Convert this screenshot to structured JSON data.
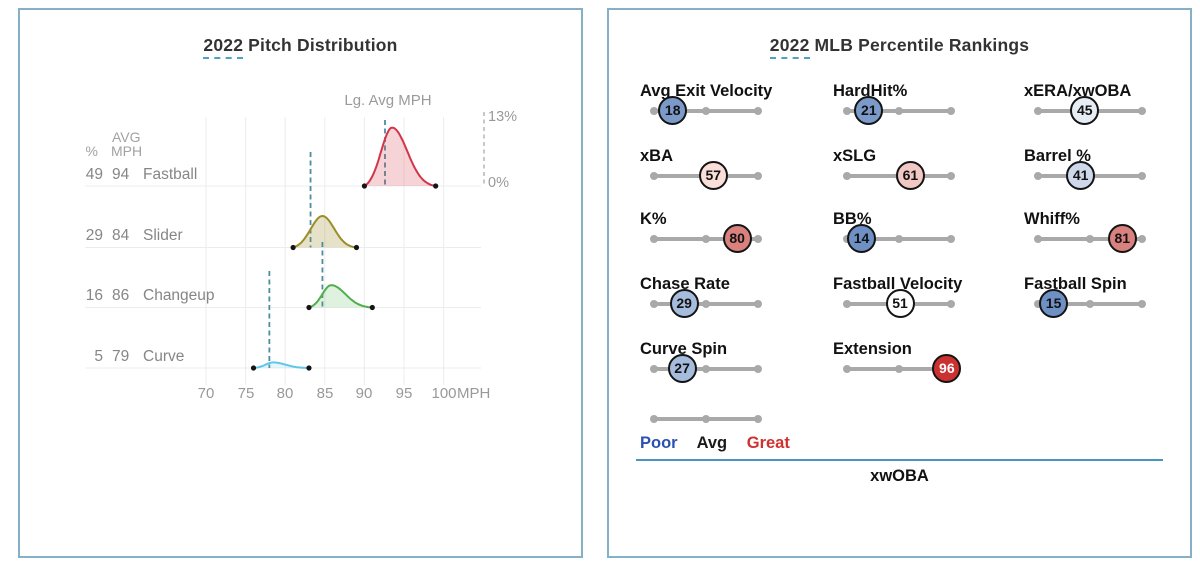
{
  "left_panel": {
    "title_year": "2022",
    "title_rest": "Pitch Distribution",
    "lg_avg_label": "Lg. Avg MPH",
    "y_axis": {
      "top": "13%",
      "bottom": "0%"
    },
    "headers": {
      "pct": "%",
      "avg_line1": "AVG",
      "avg_line2": "MPH"
    },
    "x_unit": "MPH"
  },
  "right_panel": {
    "title_year": "2022",
    "title_rest": "MLB Percentile Rankings"
  },
  "chart_data": [
    {
      "type": "area",
      "title": "2022 Pitch Distribution",
      "xlabel": "MPH",
      "ylabel": "%",
      "xlim": [
        68,
        102
      ],
      "x_ticks": [
        70,
        75,
        80,
        85,
        90,
        95,
        100
      ],
      "ylim_pct": [
        0,
        13
      ],
      "grid": true,
      "series": [
        {
          "name": "Fastball",
          "usage_pct": 49,
          "avg_mph": 94,
          "league_avg_mph": 92.6,
          "range_mph": [
            90,
            99
          ],
          "peak_mph": 93.5,
          "peak_density_pct": 11.5,
          "color": "#d2354a",
          "fill": "rgba(210,53,74,0.22)"
        },
        {
          "name": "Slider",
          "usage_pct": 29,
          "avg_mph": 84,
          "league_avg_mph": 83.2,
          "range_mph": [
            81,
            89
          ],
          "peak_mph": 84.7,
          "peak_density_pct": 6.2,
          "color": "#9d8d26",
          "fill": "rgba(157,141,38,0.25)"
        },
        {
          "name": "Changeup",
          "usage_pct": 16,
          "avg_mph": 86,
          "league_avg_mph": 84.7,
          "range_mph": [
            83,
            91
          ],
          "peak_mph": 85.8,
          "peak_density_pct": 4.4,
          "color": "#4faf4c",
          "fill": "rgba(79,175,76,0.18)"
        },
        {
          "name": "Curve",
          "usage_pct": 5,
          "avg_mph": 79,
          "league_avg_mph": 78.0,
          "range_mph": [
            76,
            83
          ],
          "peak_mph": 78.5,
          "peak_density_pct": 1.1,
          "color": "#5fc8ea",
          "fill": "rgba(95,200,234,0.16)"
        }
      ]
    },
    {
      "type": "table",
      "title": "2022 MLB Percentile Rankings",
      "columns": [
        "metric",
        "percentile"
      ],
      "metrics": [
        {
          "label": "Avg Exit Velocity",
          "percentile": 18,
          "color": "#7b9aca",
          "text_color": "#111111"
        },
        {
          "label": "HardHit%",
          "percentile": 21,
          "color": "#7b9aca",
          "text_color": "#111111"
        },
        {
          "label": "xERA/xwOBA",
          "percentile": 45,
          "color": "#e7edf4",
          "text_color": "#111111"
        },
        {
          "label": "xBA",
          "percentile": 57,
          "color": "#f9ded9",
          "text_color": "#111111"
        },
        {
          "label": "xSLG",
          "percentile": 61,
          "color": "#f2c8c5",
          "text_color": "#111111"
        },
        {
          "label": "Barrel %",
          "percentile": 41,
          "color": "#cdd9ea",
          "text_color": "#111111"
        },
        {
          "label": "K%",
          "percentile": 80,
          "color": "#d8817e",
          "text_color": "#111111"
        },
        {
          "label": "BB%",
          "percentile": 14,
          "color": "#6f90c4",
          "text_color": "#111111"
        },
        {
          "label": "Whiff%",
          "percentile": 81,
          "color": "#d8817e",
          "text_color": "#111111"
        },
        {
          "label": "Chase Rate",
          "percentile": 29,
          "color": "#a6bcdd",
          "text_color": "#111111"
        },
        {
          "label": "Fastball Velocity",
          "percentile": 51,
          "color": "#fefefe",
          "text_color": "#111111"
        },
        {
          "label": "Fastball Spin",
          "percentile": 15,
          "color": "#6f90c4",
          "text_color": "#111111"
        },
        {
          "label": "Curve Spin",
          "percentile": 27,
          "color": "#a6bcdd",
          "text_color": "#111111"
        },
        {
          "label": "Extension",
          "percentile": 96,
          "color": "#cb3131",
          "text_color": "#ffffff"
        }
      ],
      "legend": {
        "poor": "Poor",
        "avg": "Avg",
        "great": "Great",
        "poor_color": "#2b52b0",
        "avg_color": "#1a1a1a",
        "great_color": "#d03030"
      },
      "footer": "xwOBA"
    }
  ]
}
